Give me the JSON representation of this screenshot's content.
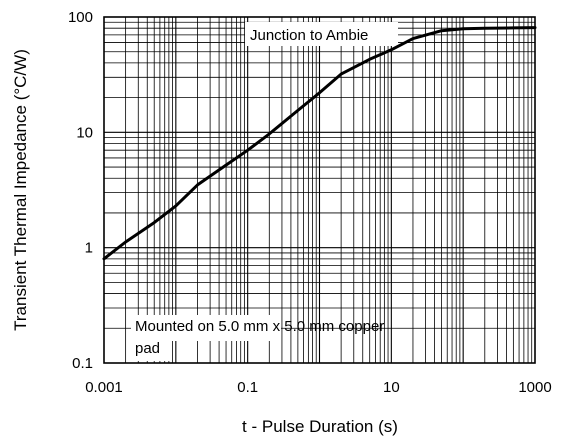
{
  "chart_data": {
    "type": "line",
    "title": "",
    "xlabel": "t - Pulse Duration (s)",
    "ylabel": "Transient Thermal Impedance (°C/W)",
    "x_scale": "log",
    "y_scale": "log",
    "xlim": [
      0.001,
      1000
    ],
    "ylim": [
      0.1,
      100
    ],
    "grid": true,
    "x_ticks": [
      "0.001",
      "0.1",
      "10",
      "1000"
    ],
    "y_ticks": [
      "0.1",
      "1",
      "10",
      "100"
    ],
    "series": [
      {
        "x": [
          0.001,
          0.002,
          0.005,
          0.01,
          0.02,
          0.05,
          0.1,
          0.2,
          0.5,
          1,
          2,
          5,
          10,
          20,
          50,
          100,
          200,
          500,
          1000
        ],
        "values": [
          0.8,
          1.12,
          1.65,
          2.3,
          3.5,
          5.2,
          7.0,
          9.7,
          15.5,
          22,
          32,
          43,
          52,
          65,
          76,
          79,
          80,
          80.5,
          81
        ]
      }
    ],
    "annotations": [
      {
        "text": "Junction to Ambie"
      },
      {
        "lines": [
          "Mounted on 5.0 mm x 5.0 mm copper",
          "pad"
        ]
      }
    ]
  }
}
